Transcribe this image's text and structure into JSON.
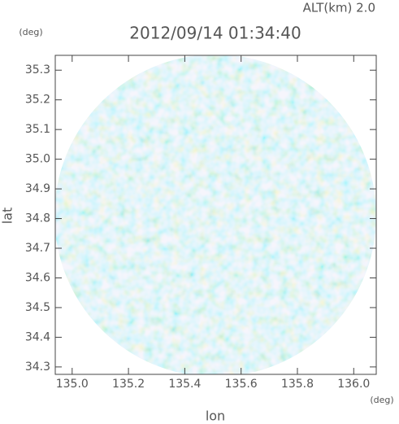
{
  "chart_data": {
    "type": "heatmap",
    "title": "2012/09/14 01:34:40",
    "subtitle": "ALT(km) 2.0",
    "x_label": "lon",
    "y_label": "lat",
    "x_unit": "(deg)",
    "y_unit": "(deg)",
    "xlim": [
      134.94,
      136.08
    ],
    "ylim": [
      34.275,
      35.35
    ],
    "xticks": [
      {
        "value": 135,
        "label": "135.0"
      },
      135.2,
      135.4,
      135.6,
      135.8,
      {
        "value": 136,
        "label": "136.0"
      }
    ],
    "yticks": [
      34.3,
      34.4,
      34.5,
      34.6,
      34.7,
      34.8,
      34.9,
      {
        "value": 35,
        "label": "35.0"
      },
      35.1,
      35.2,
      35.3
    ]
  }
}
